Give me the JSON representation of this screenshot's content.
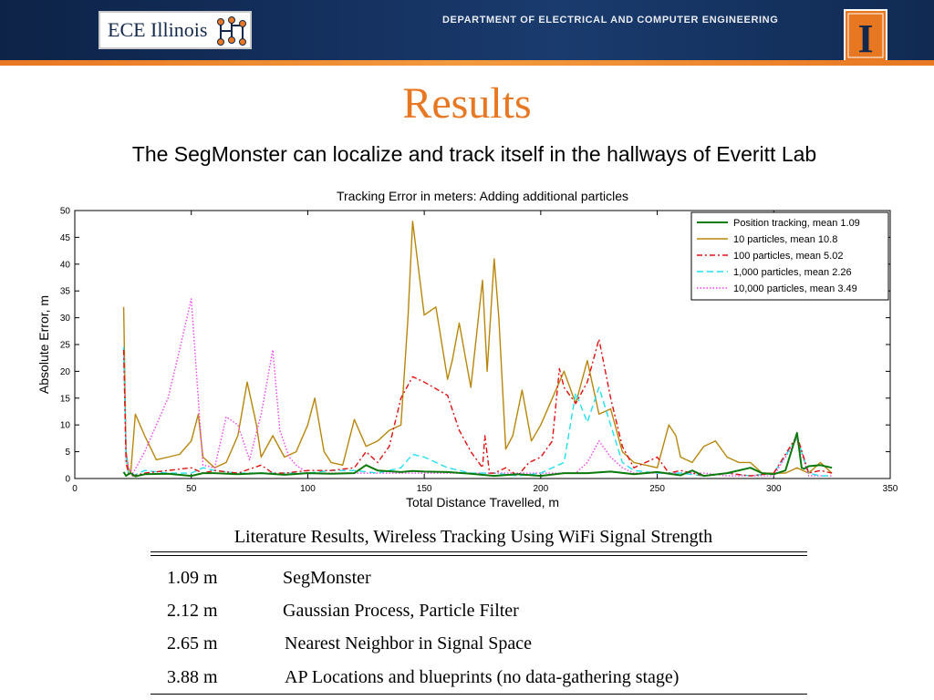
{
  "header": {
    "logo_text": "ECE Illinois",
    "department": "DEPARTMENT OF ELECTRICAL AND COMPUTER ENGINEERING",
    "block_i": "I",
    "brand_orange": "#e87722",
    "brand_blue": "#13294b"
  },
  "slide": {
    "title": "Results",
    "subtitle": "The SegMonster can localize and track itself in the hallways of Everitt Lab"
  },
  "chart_data": {
    "type": "line",
    "title": "Tracking Error in meters: Adding additional particles",
    "xlabel": "Total Distance Travelled, m",
    "ylabel": "Absolute Error, m",
    "xlim": [
      0,
      350
    ],
    "ylim": [
      0,
      50
    ],
    "xticks": [
      0,
      50,
      100,
      150,
      200,
      250,
      300,
      350
    ],
    "yticks": [
      0,
      5,
      10,
      15,
      20,
      25,
      30,
      35,
      40,
      45,
      50
    ],
    "grid": false,
    "legend_position": "top-right",
    "series": [
      {
        "name": "Position tracking, mean 1.09",
        "color": "#0a7a0a",
        "dash": "solid",
        "x": [
          21,
          22,
          23,
          24,
          26,
          30,
          40,
          50,
          55,
          60,
          70,
          80,
          90,
          100,
          110,
          120,
          125,
          130,
          140,
          145,
          150,
          160,
          170,
          180,
          190,
          200,
          210,
          220,
          230,
          240,
          250,
          260,
          265,
          270,
          280,
          290,
          295,
          300,
          305,
          310,
          312,
          313,
          315,
          320,
          325
        ],
        "y": [
          1.2,
          0.5,
          0.8,
          1.0,
          0.4,
          0.8,
          0.9,
          0.5,
          1.0,
          1.0,
          0.8,
          1.0,
          0.7,
          1.0,
          0.9,
          1.0,
          2.5,
          1.5,
          1.2,
          1.4,
          1.3,
          1.2,
          0.9,
          0.5,
          0.8,
          0.5,
          1.0,
          1.0,
          1.3,
          0.8,
          1.2,
          0.6,
          1.5,
          0.5,
          1.0,
          2.0,
          1.0,
          0.8,
          1.5,
          8.5,
          2.0,
          1.8,
          2.3,
          2.5,
          2.0
        ]
      },
      {
        "name": "10 particles, mean 10.8",
        "color": "#b8860b",
        "dash": "solid",
        "x": [
          21,
          22,
          23,
          24,
          26,
          30,
          35,
          40,
          45,
          50,
          53,
          55,
          60,
          65,
          70,
          74,
          78,
          80,
          85,
          90,
          95,
          100,
          103,
          107,
          110,
          115,
          120,
          125,
          130,
          135,
          140,
          143,
          145,
          150,
          155,
          160,
          162,
          165,
          170,
          175,
          177,
          180,
          182,
          185,
          188,
          192,
          196,
          200,
          205,
          210,
          215,
          220,
          225,
          230,
          235,
          240,
          245,
          250,
          255,
          258,
          260,
          265,
          270,
          275,
          280,
          285,
          290,
          295,
          300,
          305,
          310,
          315,
          320,
          325
        ],
        "y": [
          32,
          5,
          2,
          1,
          12,
          8,
          3.5,
          4,
          4.5,
          7,
          12,
          4,
          2,
          3,
          8,
          18,
          10,
          4,
          8,
          4,
          5,
          10,
          15,
          5,
          3,
          2.5,
          11,
          6,
          7,
          9,
          10,
          30,
          48,
          30.5,
          32,
          18.5,
          22,
          29,
          17,
          37,
          20,
          41,
          30,
          5.5,
          8,
          16.5,
          7,
          10,
          15,
          20,
          14,
          22,
          12,
          13,
          5,
          3,
          2.5,
          2,
          10,
          8,
          4,
          3,
          6,
          7,
          4,
          3,
          3,
          1,
          1,
          1,
          2,
          1,
          3,
          1
        ]
      },
      {
        "name": "100 particles, mean 5.02",
        "color": "#e01010",
        "dash": "6 3 2 3",
        "x": [
          21,
          22,
          23,
          25,
          30,
          40,
          50,
          55,
          60,
          70,
          80,
          85,
          90,
          100,
          110,
          120,
          125,
          130,
          135,
          140,
          145,
          150,
          160,
          165,
          170,
          175,
          176,
          178,
          180,
          185,
          190,
          195,
          200,
          205,
          208,
          210,
          215,
          220,
          225,
          230,
          235,
          240,
          245,
          250,
          255,
          260,
          265,
          270,
          280,
          290,
          300,
          310,
          315,
          320,
          325
        ],
        "y": [
          24,
          3,
          1,
          0.5,
          1.0,
          1.5,
          2.0,
          1.0,
          1.5,
          1.0,
          2.5,
          1.0,
          1.0,
          1.5,
          1.5,
          2.0,
          5.0,
          3.0,
          6.0,
          15,
          19,
          18,
          15.5,
          9,
          5,
          2,
          8,
          1,
          1,
          2,
          0.5,
          3,
          4,
          7,
          20.5,
          17,
          14,
          18,
          26,
          15,
          6,
          2,
          3,
          4,
          1,
          1.5,
          1,
          0.5,
          1.0,
          0.5,
          1.0,
          8,
          1.0,
          1.5,
          1.0
        ]
      },
      {
        "name": "1,000 particles, mean 2.26",
        "color": "#20e0f0",
        "dash": "7 4",
        "x": [
          21,
          22,
          23,
          25,
          30,
          40,
          50,
          55,
          60,
          70,
          80,
          90,
          100,
          110,
          120,
          130,
          140,
          145,
          150,
          160,
          170,
          180,
          190,
          200,
          205,
          210,
          215,
          220,
          225,
          230,
          235,
          240,
          250,
          260,
          270,
          280,
          290,
          300,
          310,
          315,
          320,
          325
        ],
        "y": [
          24.5,
          4,
          1,
          0.5,
          1.5,
          1.0,
          1.0,
          2.0,
          1.5,
          1.0,
          1.0,
          1.0,
          1.0,
          1.5,
          1.5,
          1.0,
          2.0,
          4.5,
          4.0,
          2.0,
          1.0,
          1.0,
          0.5,
          1.0,
          2.0,
          3.0,
          16,
          10.5,
          17,
          10,
          3.0,
          1.5,
          1.0,
          1.0,
          0.5,
          1.0,
          0.5,
          1.0,
          7.5,
          1.0,
          0.5,
          0.5
        ]
      },
      {
        "name": "10,000 particles, mean 3.49",
        "color": "#f040f0",
        "dash": "1.5 2",
        "x": [
          21,
          22,
          23,
          25,
          30,
          40,
          45,
          50,
          55,
          60,
          65,
          70,
          75,
          80,
          85,
          88,
          92,
          95,
          100,
          110,
          120,
          130,
          140,
          150,
          160,
          170,
          180,
          190,
          200,
          210,
          215,
          220,
          225,
          230,
          235,
          240,
          250,
          260,
          270,
          280,
          290,
          300,
          310,
          315,
          320,
          325
        ],
        "y": [
          24,
          5,
          2,
          1,
          5,
          15,
          24,
          33.5,
          2.5,
          2.0,
          11.5,
          10,
          3.5,
          12,
          24,
          9,
          4,
          2.5,
          1.0,
          1.0,
          1.0,
          1.0,
          1.0,
          1.0,
          1.0,
          1.0,
          1.0,
          1.0,
          1.0,
          1.0,
          1.0,
          3.0,
          7.0,
          4.0,
          2.0,
          1.0,
          1.0,
          1.0,
          1.0,
          0.5,
          0.5,
          0.5,
          7.5,
          0.5,
          0.5,
          0.5
        ]
      }
    ]
  },
  "literature": {
    "caption": "Literature Results, Wireless Tracking Using WiFi Signal Strength",
    "rows": [
      {
        "value": "1.09 m",
        "method": "SegMonster"
      },
      {
        "value": "2.12 m",
        "method": "Gaussian Process, Particle Filter"
      },
      {
        "value": "2.65 m",
        "method": "Nearest Neighbor in Signal Space"
      },
      {
        "value": "3.88 m",
        "method": "AP Locations and blueprints (no data-gathering stage)"
      }
    ]
  }
}
